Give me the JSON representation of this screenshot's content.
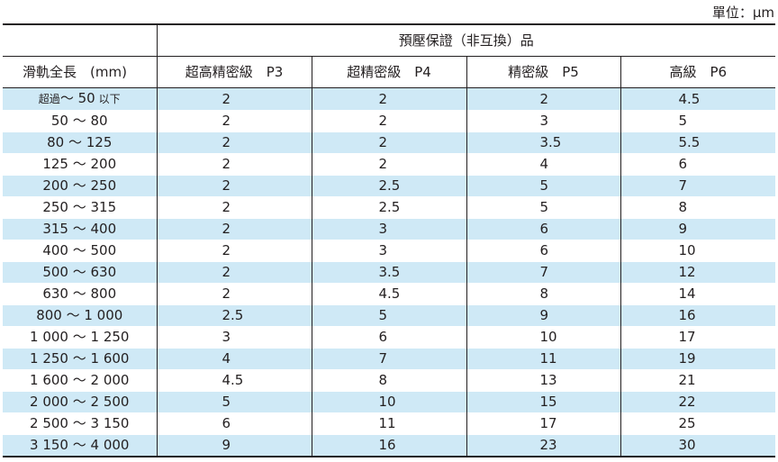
{
  "unit": "單位：μm",
  "group_header": "預壓保證（非互換）品",
  "columns": {
    "length": "滑軌全長　(mm)",
    "p3": "超高精密級　P3",
    "p4": "超精密級　P4",
    "p5": "精密級　P5",
    "p6": "高級　P6"
  },
  "rows": [
    {
      "len_prefix": "超過",
      "len_main": "～ 50",
      "len_suffix": "以下",
      "p3": "2",
      "p4": "2",
      "p5": "2",
      "p6": "4.5"
    },
    {
      "len_main": "50 ～ 80",
      "p3": "2",
      "p4": "2",
      "p5": "3",
      "p6": "5"
    },
    {
      "len_main": "80 ～ 125",
      "p3": "2",
      "p4": "2",
      "p5": "3.5",
      "p6": "5.5"
    },
    {
      "len_main": "125 ～ 200",
      "p3": "2",
      "p4": "2",
      "p5": "4",
      "p6": "6"
    },
    {
      "len_main": "200 ～ 250",
      "p3": "2",
      "p4": "2.5",
      "p5": "5",
      "p6": "7"
    },
    {
      "len_main": "250 ～ 315",
      "p3": "2",
      "p4": "2.5",
      "p5": "5",
      "p6": "8"
    },
    {
      "len_main": "315 ～ 400",
      "p3": "2",
      "p4": "3",
      "p5": "6",
      "p6": "9"
    },
    {
      "len_main": "400 ～ 500",
      "p3": "2",
      "p4": "3",
      "p5": "6",
      "p6": "10"
    },
    {
      "len_main": "500 ～ 630",
      "p3": "2",
      "p4": "3.5",
      "p5": "7",
      "p6": "12"
    },
    {
      "len_main": "630 ～ 800",
      "p3": "2",
      "p4": "4.5",
      "p5": "8",
      "p6": "14"
    },
    {
      "len_main": "800 ～ 1 000",
      "p3": "2.5",
      "p4": "5",
      "p5": "9",
      "p6": "16"
    },
    {
      "len_main": "1 000 ～ 1 250",
      "p3": "3",
      "p4": "6",
      "p5": "10",
      "p6": "17"
    },
    {
      "len_main": "1 250 ～ 1 600",
      "p3": "4",
      "p4": "7",
      "p5": "11",
      "p6": "19"
    },
    {
      "len_main": "1 600 ～ 2 000",
      "p3": "4.5",
      "p4": "8",
      "p5": "13",
      "p6": "21"
    },
    {
      "len_main": "2 000 ～ 2 500",
      "p3": "5",
      "p4": "10",
      "p5": "15",
      "p6": "22"
    },
    {
      "len_main": "2 500 ～ 3 150",
      "p3": "6",
      "p4": "11",
      "p5": "17",
      "p6": "25"
    },
    {
      "len_main": "3 150 ～ 4 000",
      "p3": "9",
      "p4": "16",
      "p5": "23",
      "p6": "30"
    }
  ]
}
